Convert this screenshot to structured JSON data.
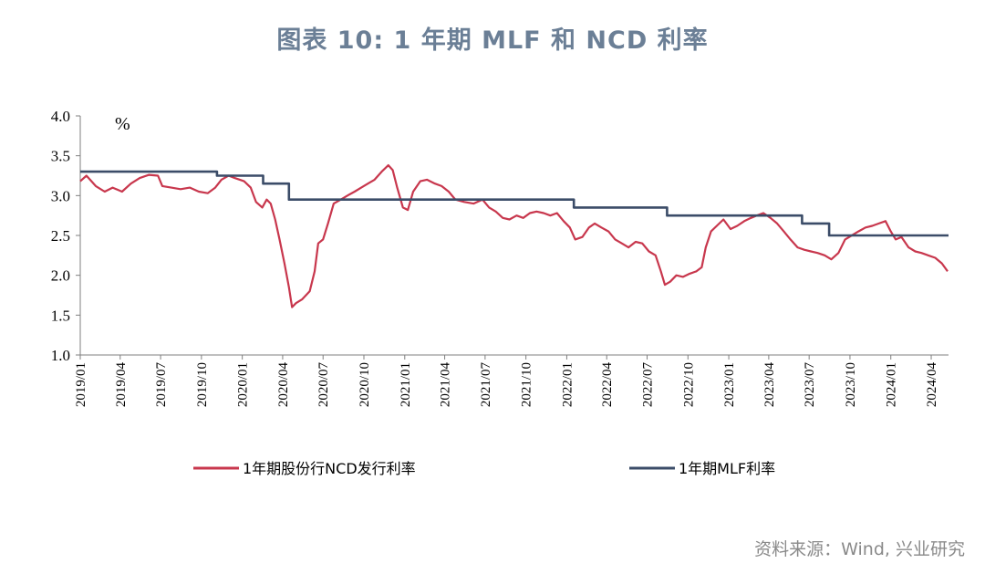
{
  "title": "图表 10: 1 年期 MLF 和 NCD 利率",
  "source": "资料来源：Wind, 兴业研究",
  "colors": {
    "ncd": "#c8374d",
    "mlf": "#3b4c68",
    "axis": "#7f7f7f",
    "title": "#6b7f96"
  },
  "chart_data": {
    "type": "line",
    "unit_label": "%",
    "ylim": [
      1.0,
      4.0
    ],
    "yticks": [
      "1.0",
      "1.5",
      "2.0",
      "2.5",
      "3.0",
      "3.5",
      "4.0"
    ],
    "x_range": [
      "2019-01-01",
      "2024-05-10"
    ],
    "xticks": [
      "2019/01",
      "2019/04",
      "2019/07",
      "2019/10",
      "2020/01",
      "2020/04",
      "2020/07",
      "2020/10",
      "2021/01",
      "2021/04",
      "2021/07",
      "2021/10",
      "2022/01",
      "2022/04",
      "2022/07",
      "2022/10",
      "2023/01",
      "2023/04",
      "2023/07",
      "2023/10",
      "2024/01",
      "2024/04"
    ],
    "legend": {
      "ncd": "1年期股份行NCD发行利率",
      "mlf": "1年期MLF利率"
    },
    "series": [
      {
        "name": "1年期股份行NCD发行利率",
        "key": "ncd",
        "points": [
          [
            "2019-01-01",
            3.18
          ],
          [
            "2019-01-15",
            3.25
          ],
          [
            "2019-02-05",
            3.12
          ],
          [
            "2019-02-25",
            3.05
          ],
          [
            "2019-03-15",
            3.1
          ],
          [
            "2019-04-05",
            3.05
          ],
          [
            "2019-04-25",
            3.15
          ],
          [
            "2019-05-15",
            3.22
          ],
          [
            "2019-06-05",
            3.26
          ],
          [
            "2019-06-25",
            3.25
          ],
          [
            "2019-07-05",
            3.12
          ],
          [
            "2019-07-25",
            3.1
          ],
          [
            "2019-08-15",
            3.08
          ],
          [
            "2019-09-05",
            3.1
          ],
          [
            "2019-09-25",
            3.05
          ],
          [
            "2019-10-15",
            3.03
          ],
          [
            "2019-11-01",
            3.1
          ],
          [
            "2019-11-15",
            3.2
          ],
          [
            "2019-12-01",
            3.25
          ],
          [
            "2019-12-15",
            3.22
          ],
          [
            "2020-01-05",
            3.18
          ],
          [
            "2020-01-20",
            3.1
          ],
          [
            "2020-02-01",
            2.92
          ],
          [
            "2020-02-15",
            2.85
          ],
          [
            "2020-02-25",
            2.95
          ],
          [
            "2020-03-05",
            2.9
          ],
          [
            "2020-03-15",
            2.7
          ],
          [
            "2020-03-25",
            2.45
          ],
          [
            "2020-04-05",
            2.15
          ],
          [
            "2020-04-15",
            1.85
          ],
          [
            "2020-04-22",
            1.6
          ],
          [
            "2020-05-01",
            1.65
          ],
          [
            "2020-05-15",
            1.7
          ],
          [
            "2020-06-01",
            1.8
          ],
          [
            "2020-06-12",
            2.05
          ],
          [
            "2020-06-20",
            2.4
          ],
          [
            "2020-07-01",
            2.45
          ],
          [
            "2020-07-12",
            2.65
          ],
          [
            "2020-07-25",
            2.9
          ],
          [
            "2020-08-10",
            2.95
          ],
          [
            "2020-08-25",
            3.0
          ],
          [
            "2020-09-10",
            3.05
          ],
          [
            "2020-09-25",
            3.1
          ],
          [
            "2020-10-10",
            3.15
          ],
          [
            "2020-10-25",
            3.2
          ],
          [
            "2020-11-10",
            3.3
          ],
          [
            "2020-11-25",
            3.38
          ],
          [
            "2020-12-05",
            3.32
          ],
          [
            "2020-12-15",
            3.1
          ],
          [
            "2020-12-28",
            2.85
          ],
          [
            "2021-01-08",
            2.82
          ],
          [
            "2021-01-20",
            3.05
          ],
          [
            "2021-02-05",
            3.18
          ],
          [
            "2021-02-20",
            3.2
          ],
          [
            "2021-03-10",
            3.15
          ],
          [
            "2021-03-25",
            3.12
          ],
          [
            "2021-04-10",
            3.05
          ],
          [
            "2021-04-25",
            2.95
          ],
          [
            "2021-05-15",
            2.92
          ],
          [
            "2021-06-05",
            2.9
          ],
          [
            "2021-06-25",
            2.95
          ],
          [
            "2021-07-10",
            2.85
          ],
          [
            "2021-07-25",
            2.8
          ],
          [
            "2021-08-10",
            2.72
          ],
          [
            "2021-08-25",
            2.7
          ],
          [
            "2021-09-10",
            2.75
          ],
          [
            "2021-09-25",
            2.72
          ],
          [
            "2021-10-10",
            2.78
          ],
          [
            "2021-10-25",
            2.8
          ],
          [
            "2021-11-10",
            2.78
          ],
          [
            "2021-11-25",
            2.75
          ],
          [
            "2021-12-10",
            2.78
          ],
          [
            "2021-12-25",
            2.68
          ],
          [
            "2022-01-08",
            2.6
          ],
          [
            "2022-01-20",
            2.45
          ],
          [
            "2022-02-05",
            2.48
          ],
          [
            "2022-02-20",
            2.6
          ],
          [
            "2022-03-05",
            2.65
          ],
          [
            "2022-03-20",
            2.6
          ],
          [
            "2022-04-05",
            2.55
          ],
          [
            "2022-04-20",
            2.45
          ],
          [
            "2022-05-05",
            2.4
          ],
          [
            "2022-05-20",
            2.35
          ],
          [
            "2022-06-05",
            2.42
          ],
          [
            "2022-06-20",
            2.4
          ],
          [
            "2022-07-05",
            2.3
          ],
          [
            "2022-07-20",
            2.25
          ],
          [
            "2022-08-01",
            2.05
          ],
          [
            "2022-08-10",
            1.88
          ],
          [
            "2022-08-22",
            1.92
          ],
          [
            "2022-09-05",
            2.0
          ],
          [
            "2022-09-20",
            1.98
          ],
          [
            "2022-10-05",
            2.02
          ],
          [
            "2022-10-20",
            2.05
          ],
          [
            "2022-11-01",
            2.1
          ],
          [
            "2022-11-10",
            2.35
          ],
          [
            "2022-11-22",
            2.55
          ],
          [
            "2022-12-05",
            2.62
          ],
          [
            "2022-12-20",
            2.7
          ],
          [
            "2023-01-05",
            2.58
          ],
          [
            "2023-01-20",
            2.62
          ],
          [
            "2023-02-05",
            2.68
          ],
          [
            "2023-02-20",
            2.72
          ],
          [
            "2023-03-05",
            2.75
          ],
          [
            "2023-03-20",
            2.78
          ],
          [
            "2023-04-05",
            2.72
          ],
          [
            "2023-04-20",
            2.65
          ],
          [
            "2023-05-05",
            2.55
          ],
          [
            "2023-05-20",
            2.45
          ],
          [
            "2023-06-05",
            2.35
          ],
          [
            "2023-06-20",
            2.32
          ],
          [
            "2023-07-05",
            2.3
          ],
          [
            "2023-07-20",
            2.28
          ],
          [
            "2023-08-05",
            2.25
          ],
          [
            "2023-08-20",
            2.2
          ],
          [
            "2023-09-05",
            2.28
          ],
          [
            "2023-09-20",
            2.45
          ],
          [
            "2023-10-05",
            2.5
          ],
          [
            "2023-10-20",
            2.55
          ],
          [
            "2023-11-05",
            2.6
          ],
          [
            "2023-11-20",
            2.62
          ],
          [
            "2023-12-05",
            2.65
          ],
          [
            "2023-12-20",
            2.68
          ],
          [
            "2024-01-01",
            2.55
          ],
          [
            "2024-01-12",
            2.45
          ],
          [
            "2024-01-25",
            2.48
          ],
          [
            "2024-02-10",
            2.35
          ],
          [
            "2024-02-25",
            2.3
          ],
          [
            "2024-03-10",
            2.28
          ],
          [
            "2024-03-25",
            2.25
          ],
          [
            "2024-04-10",
            2.22
          ],
          [
            "2024-04-25",
            2.15
          ],
          [
            "2024-05-08",
            2.05
          ]
        ]
      },
      {
        "name": "1年期MLF利率",
        "key": "mlf",
        "steps": [
          [
            "2019-01-01",
            3.3
          ],
          [
            "2019-11-05",
            3.25
          ],
          [
            "2020-02-17",
            3.15
          ],
          [
            "2020-04-15",
            2.95
          ],
          [
            "2022-01-17",
            2.85
          ],
          [
            "2022-08-15",
            2.75
          ],
          [
            "2023-06-15",
            2.65
          ],
          [
            "2023-08-15",
            2.5
          ],
          [
            "2024-05-10",
            2.5
          ]
        ]
      }
    ]
  }
}
